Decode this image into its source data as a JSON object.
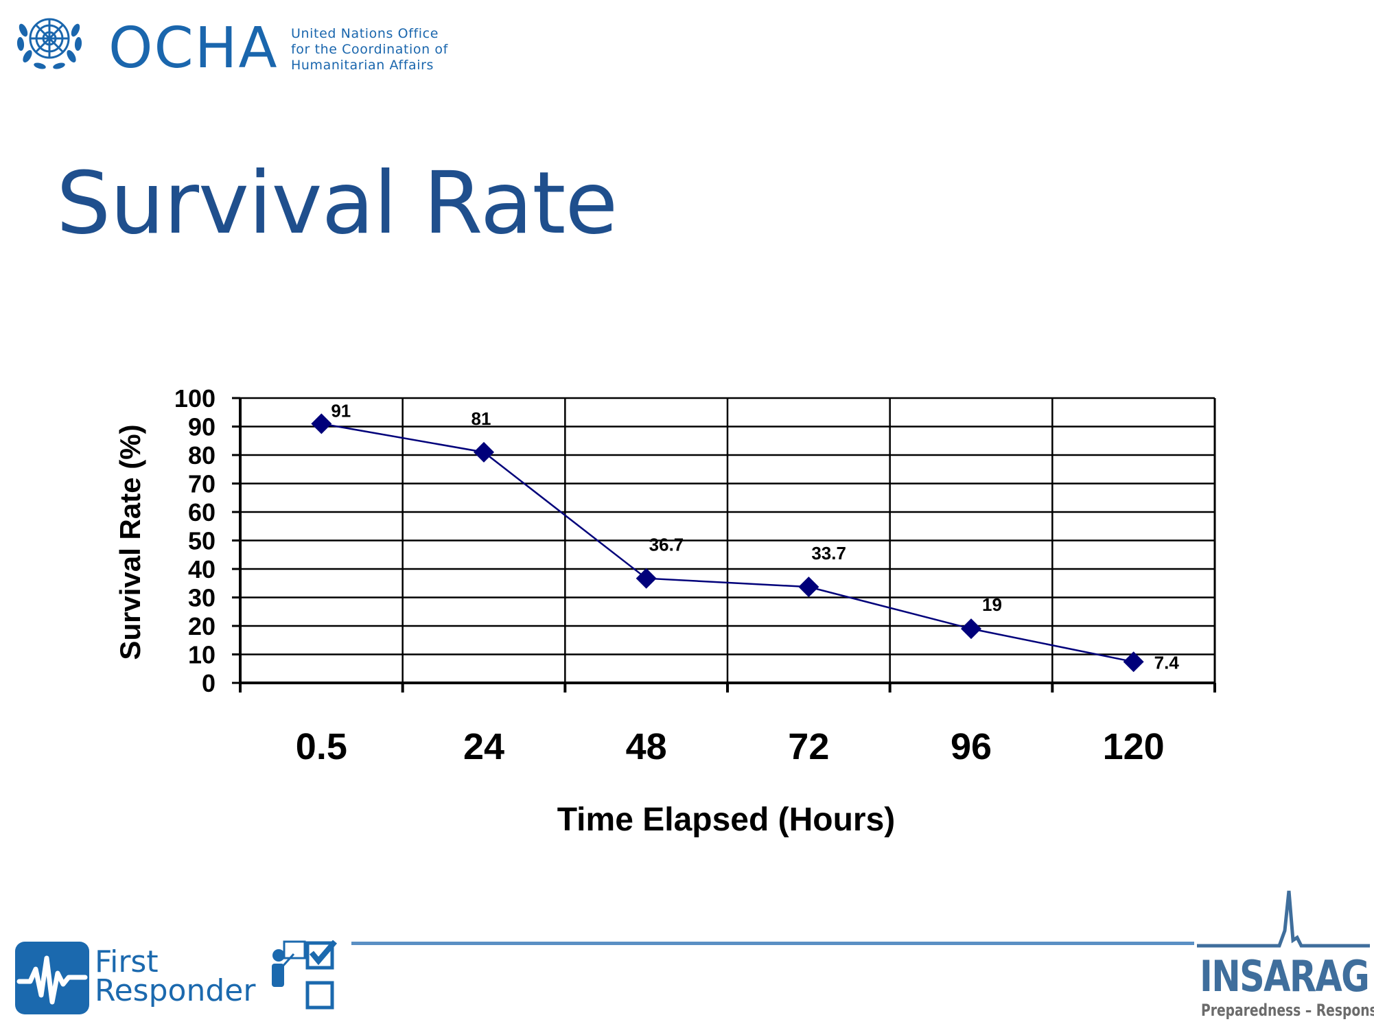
{
  "header": {
    "org_acronym": "OCHA",
    "org_full_name": [
      "United  Nations  Office",
      "for the Coordination of",
      "Humanitarian   Affairs"
    ],
    "emblem_icon": "un-emblem-icon",
    "brand_color": "#1a66ad"
  },
  "slide": {
    "title": "Survival Rate",
    "title_color": "#1f4f8d"
  },
  "chart_data": {
    "type": "line",
    "title": "",
    "categories": [
      "0.5",
      "24",
      "48",
      "72",
      "96",
      "120"
    ],
    "series": [
      {
        "values": [
          91,
          81,
          36.7,
          33.7,
          19,
          7.4
        ],
        "data_labels": [
          "91",
          "81",
          "36.7",
          "33.7",
          "19",
          "7.4"
        ],
        "color": "#00007a",
        "marker": "diamond"
      }
    ],
    "xlabel": "Time Elapsed (Hours)",
    "ylabel": "Survival Rate  (%)",
    "ylim": [
      0,
      100
    ],
    "yticks": [
      0,
      10,
      20,
      30,
      40,
      50,
      60,
      70,
      80,
      90,
      100
    ],
    "grid": true,
    "legend": "none"
  },
  "footer": {
    "left_logo": {
      "line1": "First",
      "line2": "Responder",
      "icon": "checklist-presenter-icon",
      "color": "#1b69ae"
    },
    "right_logo": {
      "name": "INSARAG",
      "tagline": "Preparedness – Response",
      "icon": "heartbeat-spike-icon",
      "color": "#3f6e9c"
    },
    "divider_color": "#5a8fc4"
  }
}
